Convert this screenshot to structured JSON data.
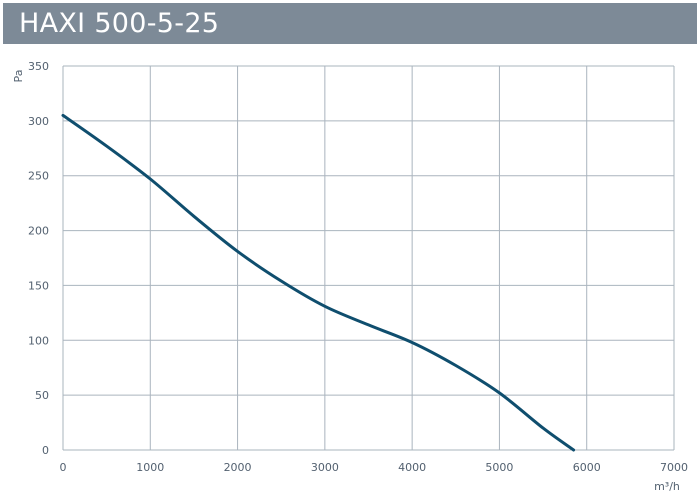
{
  "title": "HAXI 500-5-25",
  "colors": {
    "header_bg": "#7d8a97",
    "grid": "#aab4be",
    "curve": "#0f4e6e",
    "text": "#536170"
  },
  "chart_data": {
    "type": "line",
    "title": "HAXI 500-5-25",
    "xlabel": "m³/h",
    "ylabel": "Pa",
    "xlim": [
      0,
      7000
    ],
    "ylim": [
      0,
      350
    ],
    "x_ticks": [
      "0",
      "1000",
      "2000",
      "3000",
      "4000",
      "5000",
      "6000",
      "7000"
    ],
    "y_ticks": [
      "0",
      "50",
      "100",
      "150",
      "200",
      "250",
      "300",
      "350"
    ],
    "grid": true,
    "series": [
      {
        "x": [
          0,
          500,
          1000,
          1500,
          2000,
          2500,
          3000,
          3500,
          4000,
          4500,
          5000,
          5500,
          5850
        ],
        "y": [
          305,
          277,
          247,
          213,
          181,
          154,
          131,
          114,
          98,
          77,
          52,
          20,
          0
        ]
      }
    ]
  }
}
